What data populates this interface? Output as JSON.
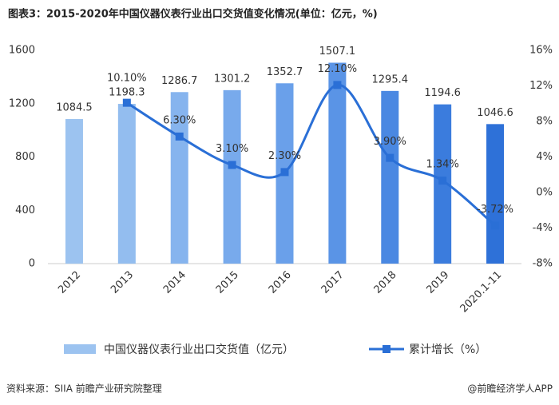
{
  "chart_data": {
    "type": "bar-line",
    "title": "图表3：2015-2020年中国仪器仪表行业出口交货值变化情况(单位：亿元，%)",
    "source": "资料来源：SIIA 前瞻产业研究院整理",
    "watermark": "@前瞻经济学人APP",
    "categories": [
      "2012",
      "2013",
      "2014",
      "2015",
      "2016",
      "2017",
      "2018",
      "2019",
      "2020.1-11"
    ],
    "series": [
      {
        "name": "中国仪器仪表行业出口交货值（亿元）",
        "type": "bar",
        "colors": [
          "#9cc3f0",
          "#93bdef",
          "#86b4ee",
          "#78aaec",
          "#6aa0ea",
          "#5a94e6",
          "#4a88e2",
          "#3b7cdd",
          "#2e71d8"
        ],
        "values": [
          1084.5,
          1198.3,
          1286.7,
          1301.2,
          1352.7,
          1507.1,
          1295.4,
          1194.6,
          1046.6
        ]
      },
      {
        "name": "累计增长（%）",
        "type": "line",
        "axis": "y2",
        "color": "#2a6fd6",
        "values": [
          null,
          10.1,
          6.3,
          3.1,
          2.3,
          12.1,
          3.9,
          1.34,
          -3.72
        ],
        "value_labels": [
          null,
          "10.10%",
          "6.30%",
          "3.10%",
          "2.30%",
          "12.10%",
          "3.90%",
          "1.34%",
          "-3.72%"
        ]
      }
    ],
    "ylim": [
      0,
      1600
    ],
    "yticks": [
      0,
      400,
      800,
      1200,
      1600
    ],
    "y2lim": [
      -8,
      16
    ],
    "y2ticks": [
      {
        "value": -8,
        "label": "-8%"
      },
      {
        "value": -4,
        "label": "-4%"
      },
      {
        "value": 0,
        "label": "0%"
      },
      {
        "value": 4,
        "label": "4%"
      },
      {
        "value": 8,
        "label": "8%"
      },
      {
        "value": 12,
        "label": "12%"
      },
      {
        "value": 16,
        "label": "16%"
      }
    ],
    "grid": false
  }
}
